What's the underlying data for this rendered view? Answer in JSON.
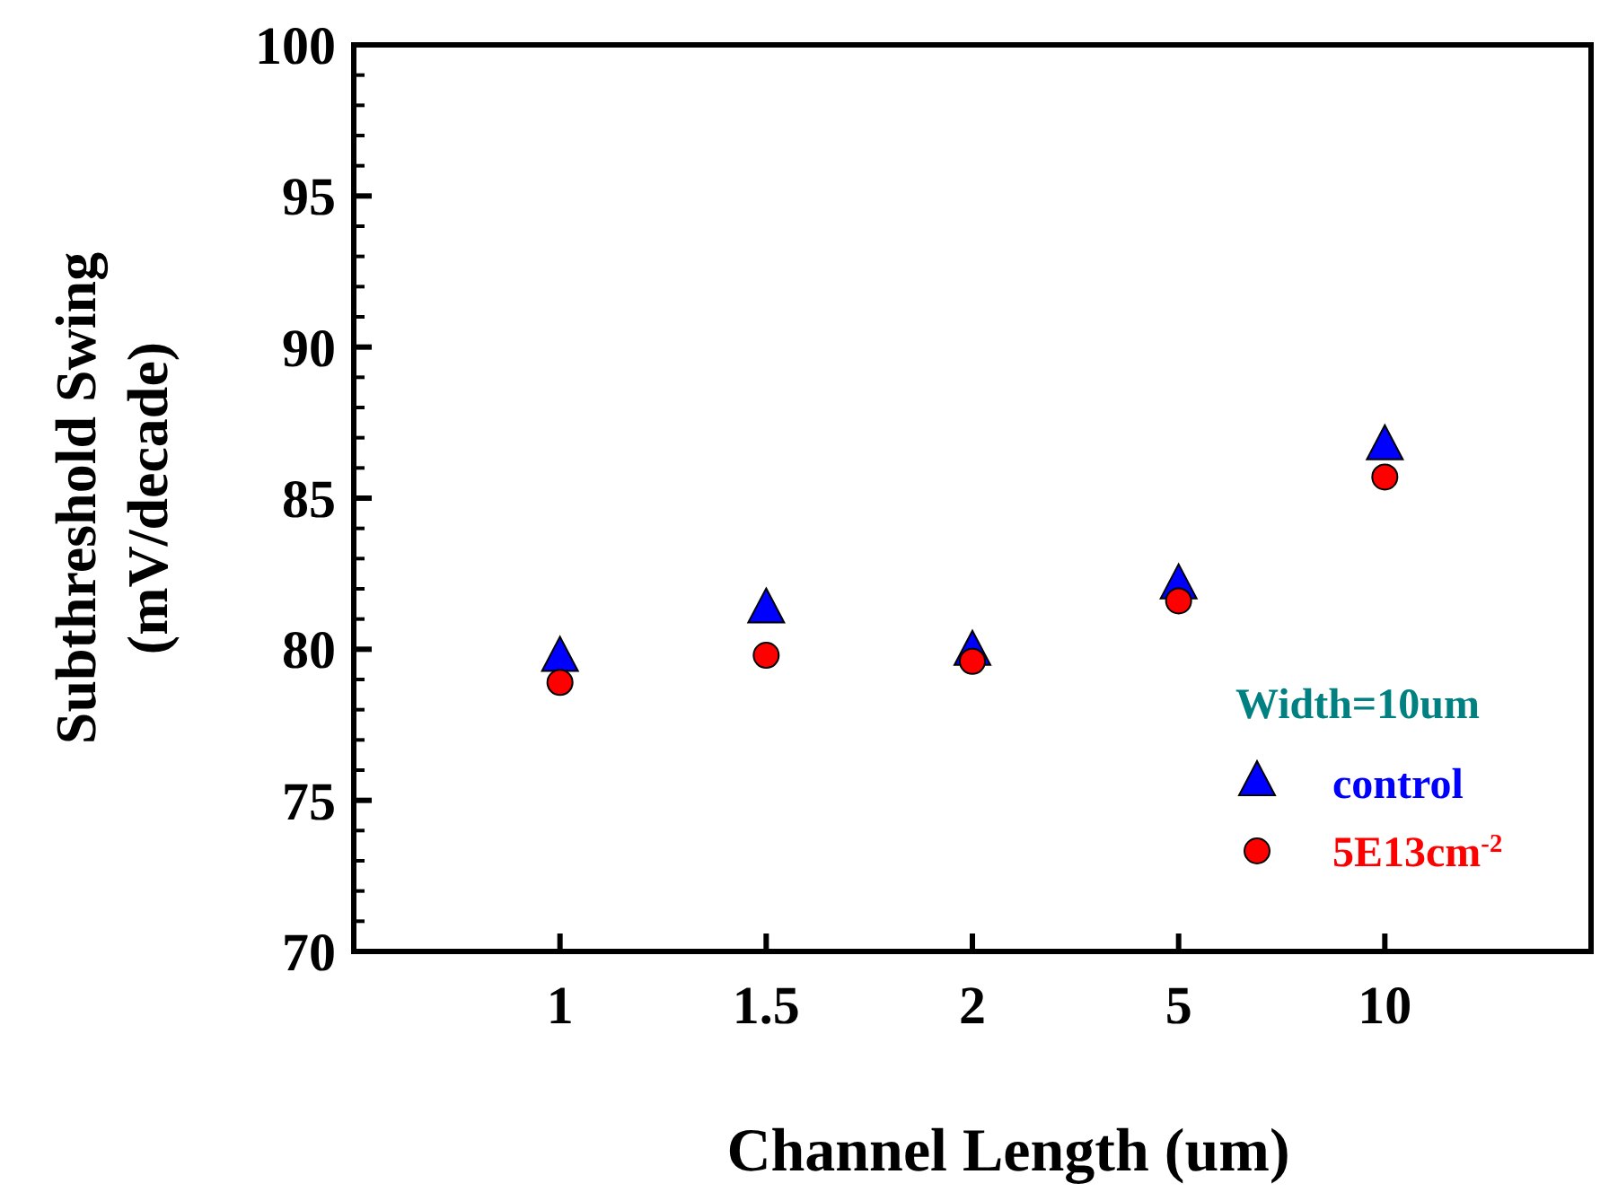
{
  "chart_data": {
    "type": "scatter",
    "xlabel": "Channel Length (um)",
    "ylabel": "Subthreshold Swing\n(mV/decade)",
    "categories": [
      "1",
      "1.5",
      "2",
      "5",
      "10"
    ],
    "ylim": [
      70,
      100
    ],
    "yticks": [
      70,
      75,
      80,
      85,
      90,
      95,
      100
    ],
    "grid": false,
    "legend": "bottom right",
    "legend_title": "Width=10um",
    "series": [
      {
        "name": "control",
        "color": "#0000ff",
        "marker": "triangle",
        "values": [
          79.7,
          81.3,
          79.9,
          82.1,
          86.7
        ]
      },
      {
        "name": "5E13cm$^{-2}$",
        "color": "#ff0000",
        "marker": "circle",
        "values": [
          78.9,
          79.8,
          79.6,
          81.6,
          85.7
        ]
      }
    ]
  }
}
